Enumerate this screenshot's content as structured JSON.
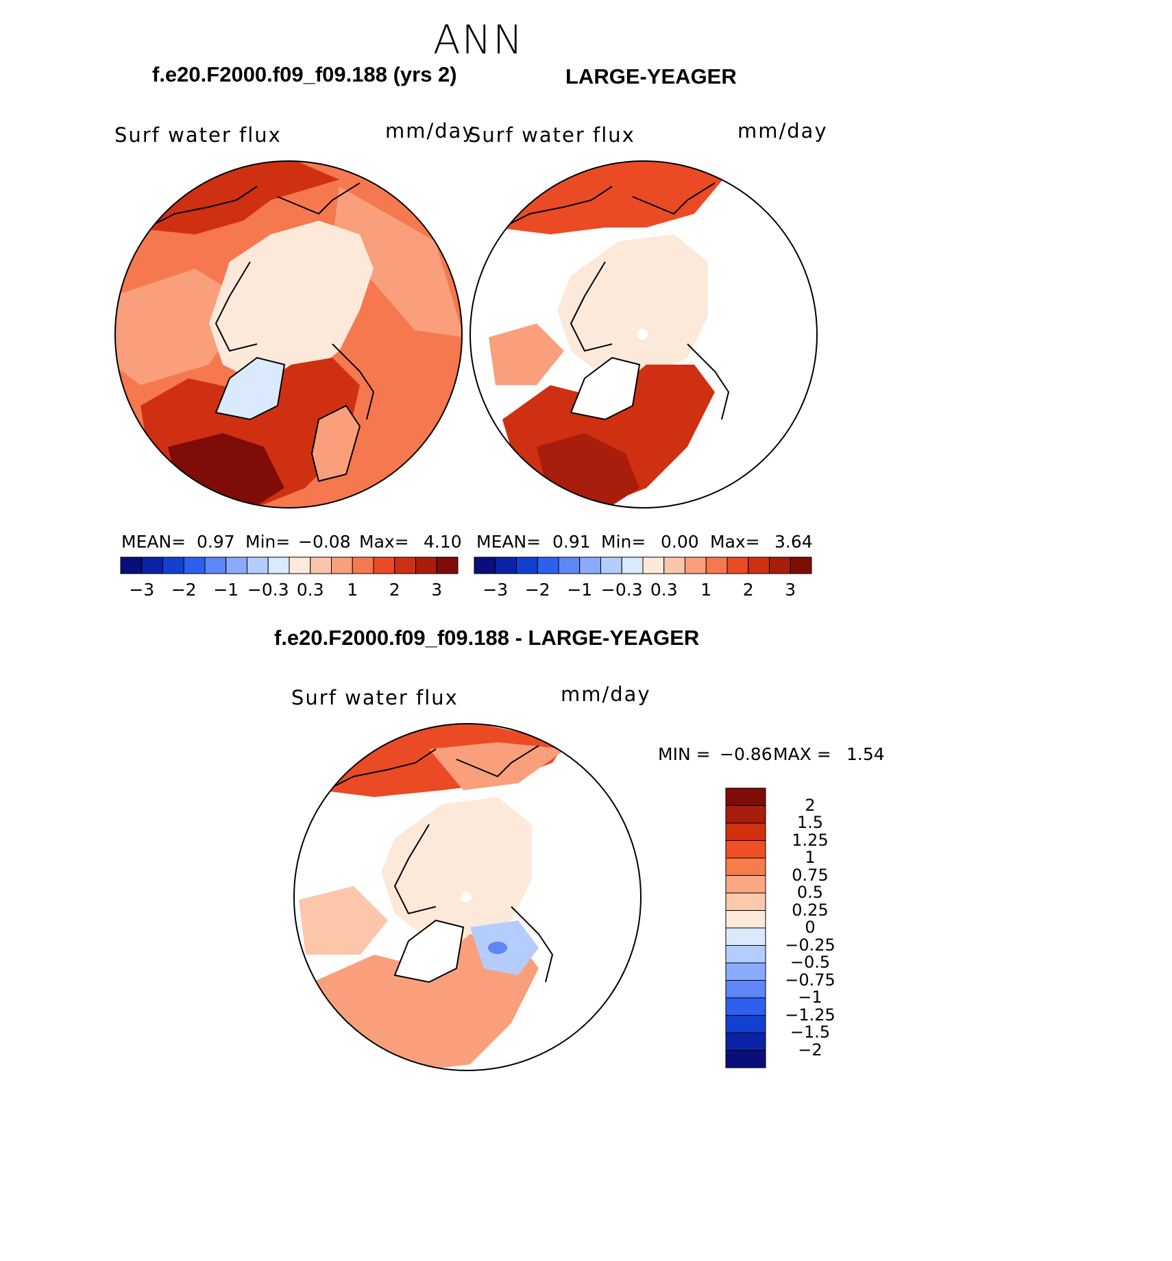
{
  "page": {
    "season": "ANN",
    "left_title": "f.e20.F2000.f09_f09.188 (yrs 2)",
    "right_title": "LARGE-YEAGER",
    "diff_title": "f.e20.F2000.f09_f09.188 - LARGE-YEAGER"
  },
  "panels": [
    {
      "variable": "Surf  water  flux",
      "units": "mm/day",
      "stats": {
        "mean_label": "MEAN=",
        "mean": "0.97",
        "min_label": "Min=",
        "min": "−0.08",
        "max_label": "Max=",
        "max": "4.10"
      }
    },
    {
      "variable": "Surf  water  flux",
      "units": "mm/day",
      "stats": {
        "mean_label": "MEAN=",
        "mean": "0.91",
        "min_label": "Min=",
        "min": "0.00",
        "max_label": "Max=",
        "max": "3.64"
      }
    }
  ],
  "diff_panel": {
    "variable": "Surf  water  flux",
    "units": "mm/day",
    "min_label": "MIN =",
    "min": "−0.86",
    "max_label": "MAX =",
    "max": "1.54"
  },
  "colorbar_h": {
    "colors": [
      "#0a0e7a",
      "#0b23a6",
      "#1240d2",
      "#2d60ef",
      "#5d86f7",
      "#8aabfb",
      "#b5cdfc",
      "#dae9fd",
      "#fde9d9",
      "#fcc6aa",
      "#f99f7c",
      "#f5784f",
      "#ea4b25",
      "#cf3012",
      "#a81d0b",
      "#7f0c06"
    ],
    "ticks": [
      "−3",
      "−2",
      "−1",
      "−0.3",
      "0.3",
      "1",
      "2",
      "3"
    ]
  },
  "colorbar_v": {
    "colors": [
      "#7f0c06",
      "#a81d0b",
      "#d3300f",
      "#ef4f22",
      "#f77c4a",
      "#fba783",
      "#fcc9ad",
      "#fde9d9",
      "#dae9fd",
      "#b5cdfc",
      "#8aabfb",
      "#5d86f7",
      "#2d60ef",
      "#1240d2",
      "#0b23a6",
      "#0a0e7a"
    ],
    "ticks": [
      "2",
      "1.5",
      "1.25",
      "1",
      "0.75",
      "0.5",
      "0.25",
      "0",
      "−0.25",
      "−0.5",
      "−0.75",
      "−1",
      "−1.25",
      "−1.5",
      "−2"
    ]
  },
  "map_fill": {
    "left": {
      "ocean_outer": "#f5784f",
      "ocean_mid": "#f99f7c",
      "arctic": "#fde9d9",
      "atlantic": "#cf3012",
      "atlantic_core": "#7f0c06",
      "pacific": "#ea4b25",
      "greenland": "#dae9fd"
    },
    "right": {
      "ocean_outer": "#ffffff",
      "arctic": "#fde9d9",
      "atlantic": "#cf3012",
      "atlantic_core": "#a81d0b",
      "pacific": "#ea4b25"
    },
    "diff": {
      "arctic": "#fde9d9",
      "pacific": "#ea4b25",
      "atlantic": "#f99f7c",
      "blue_patch": "#b5cdfc",
      "blue_core": "#5d86f7"
    }
  }
}
